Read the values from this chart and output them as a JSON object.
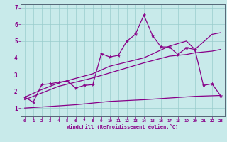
{
  "xlabel": "Windchill (Refroidissement éolien,°C)",
  "background_color": "#c8eaea",
  "grid_color": "#99cccc",
  "line_color": "#880088",
  "xlim": [
    -0.5,
    23.5
  ],
  "ylim": [
    0.5,
    7.2
  ],
  "xticks": [
    0,
    1,
    2,
    3,
    4,
    5,
    6,
    7,
    8,
    9,
    10,
    11,
    12,
    13,
    14,
    15,
    16,
    17,
    18,
    19,
    20,
    21,
    22,
    23
  ],
  "yticks": [
    1,
    2,
    3,
    4,
    5,
    6,
    7
  ],
  "jagged_x": [
    0,
    1,
    2,
    3,
    4,
    5,
    6,
    7,
    8,
    9,
    10,
    11,
    12,
    13,
    14,
    15,
    16,
    17,
    18,
    19,
    20,
    21,
    22,
    23
  ],
  "jagged_y": [
    1.65,
    1.35,
    2.4,
    2.45,
    2.55,
    2.6,
    2.2,
    2.35,
    2.4,
    4.25,
    4.05,
    4.15,
    5.0,
    5.4,
    6.55,
    5.35,
    4.65,
    4.65,
    4.2,
    4.6,
    4.5,
    2.35,
    2.45,
    1.75
  ],
  "smooth_upper_x": [
    0,
    2,
    4,
    8,
    10,
    14,
    17,
    19,
    20,
    22,
    23
  ],
  "smooth_upper_y": [
    1.65,
    2.1,
    2.5,
    3.05,
    3.5,
    4.0,
    4.7,
    5.0,
    4.5,
    5.4,
    5.5
  ],
  "smooth_mid_x": [
    0,
    2,
    4,
    8,
    10,
    14,
    17,
    19,
    20,
    22,
    23
  ],
  "smooth_mid_y": [
    1.5,
    1.9,
    2.3,
    2.8,
    3.1,
    3.7,
    4.1,
    4.2,
    4.3,
    4.4,
    4.5
  ],
  "smooth_lower_x": [
    0,
    3,
    6,
    10,
    14,
    17,
    20,
    23
  ],
  "smooth_lower_y": [
    1.0,
    1.1,
    1.2,
    1.4,
    1.5,
    1.6,
    1.7,
    1.75
  ]
}
